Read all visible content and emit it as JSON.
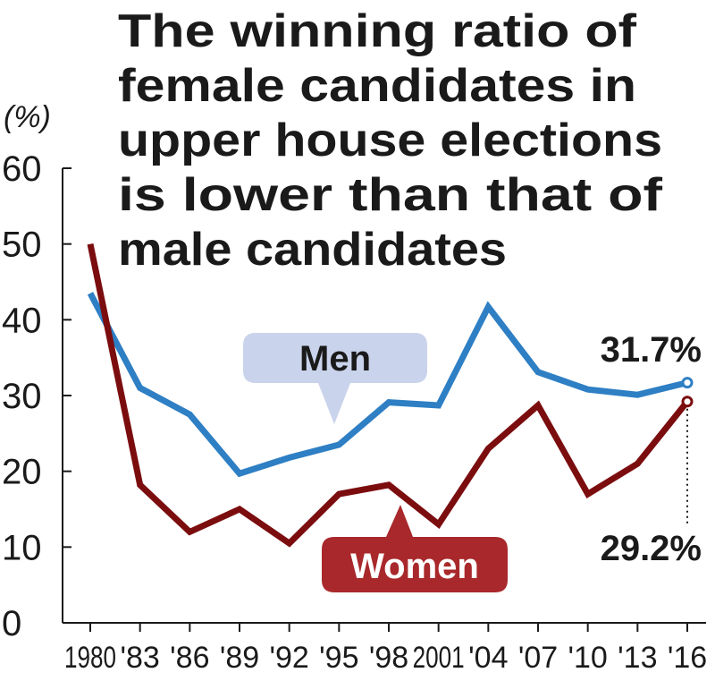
{
  "chart_data": {
    "type": "line",
    "title_lines": [
      "The winning ratio of",
      "female candidates in",
      "upper house elections",
      "is lower than that of",
      "male candidates"
    ],
    "ylabel": "(%)",
    "ylim": [
      0,
      60
    ],
    "yticks": [
      0,
      10,
      20,
      30,
      40,
      50,
      60
    ],
    "categories": [
      "1980",
      "'83",
      "'86",
      "'89",
      "'92",
      "'95",
      "'98",
      "2001",
      "'04",
      "'07",
      "'10",
      "'13",
      "'16"
    ],
    "series": [
      {
        "name": "Men",
        "color": "#2e7fc4",
        "values": [
          43.5,
          31,
          27.5,
          19.7,
          21.8,
          23.5,
          29.1,
          28.7,
          41.7,
          33.1,
          30.8,
          30.1,
          31.7
        ]
      },
      {
        "name": "Women",
        "color": "#7b0d0f",
        "values": [
          50,
          18.2,
          12,
          15,
          10.5,
          17,
          18.2,
          13,
          23,
          28.7,
          17,
          21,
          29.2
        ]
      }
    ],
    "annotations": [
      {
        "series": "Men",
        "text": "31.7%"
      },
      {
        "series": "Women",
        "text": "29.2%"
      }
    ],
    "legend": {
      "men_label": "Men",
      "men_bubble_color": "#c9d3eb",
      "women_label": "Women",
      "women_bubble_color": "#a8282b"
    }
  }
}
